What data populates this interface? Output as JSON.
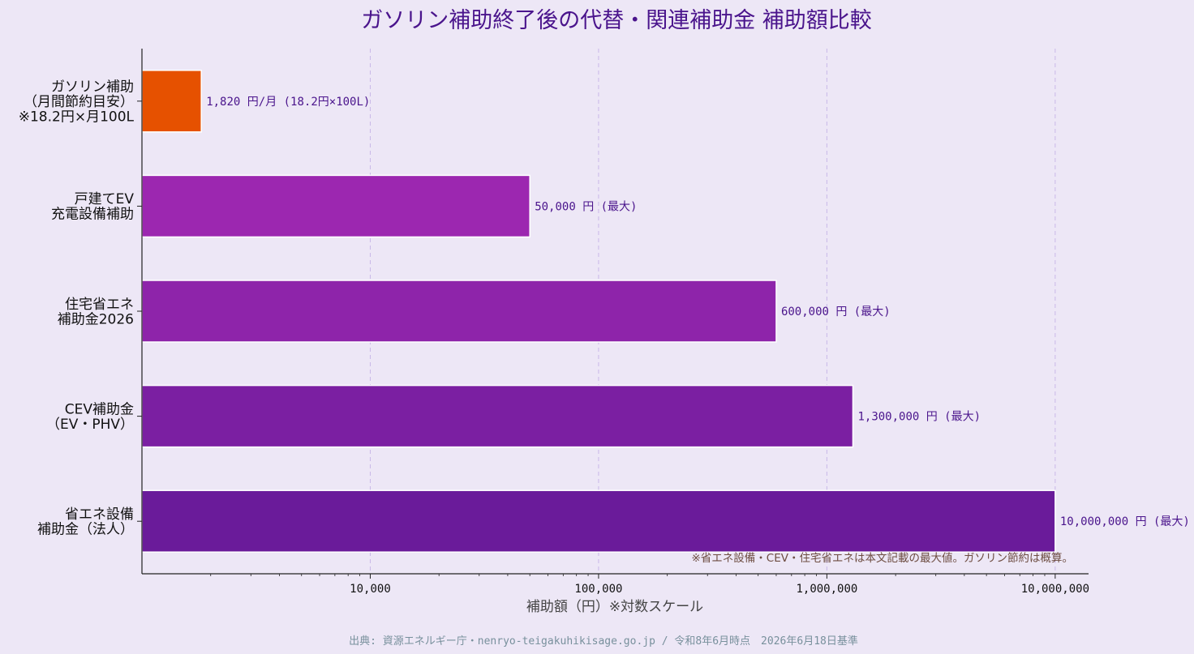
{
  "chart_data": {
    "type": "bar",
    "orientation": "horizontal",
    "title": "ガソリン補助終了後の代替・関連補助金 補助額比較",
    "xlabel": "補助額（円）※対数スケール",
    "xscale": "log",
    "xlim": [
      1000,
      14000000
    ],
    "xticks": [
      {
        "value": 10000,
        "label": "10,000"
      },
      {
        "value": 100000,
        "label": "100,000"
      },
      {
        "value": 1000000,
        "label": "1,000,000"
      },
      {
        "value": 10000000,
        "label": "10,000,000"
      }
    ],
    "grid": "x-dashed",
    "categories": [
      {
        "lines": [
          "ガソリン補助",
          "（月間節約目安）",
          "※18.2円×月100L"
        ],
        "value": 1820,
        "label": "1,820 円/月 (18.2円×100L)",
        "color": "#e65100"
      },
      {
        "lines": [
          "戸建てEV",
          "充電設備補助"
        ],
        "value": 50000,
        "label": "50,000 円 (最大)",
        "color": "#9c27b0"
      },
      {
        "lines": [
          "住宅省エネ",
          "補助金2026"
        ],
        "value": 600000,
        "label": "600,000 円 (最大)",
        "color": "#8e24aa"
      },
      {
        "lines": [
          "CEV補助金",
          "（EV・PHV）"
        ],
        "value": 1300000,
        "label": "1,300,000 円 (最大)",
        "color": "#7b1fa2"
      },
      {
        "lines": [
          "省エネ設備",
          "補助金（法人）"
        ],
        "value": 10000000,
        "label": "10,000,000 円 (最大)",
        "color": "#6a1b9a"
      }
    ],
    "note": "※省エネ設備・CEV・住宅省エネは本文記載の最大値。ガソリン節約は概算。",
    "source": "出典: 資源エネルギー庁・nenryo-teigakuhikisage.go.jp / 令和8年6月時点　2026年6月18日基準"
  },
  "colors": {
    "background": "#ede7f6",
    "title": "#4a148c",
    "value_label": "#4a148c",
    "grid": "#c9b8e8"
  }
}
